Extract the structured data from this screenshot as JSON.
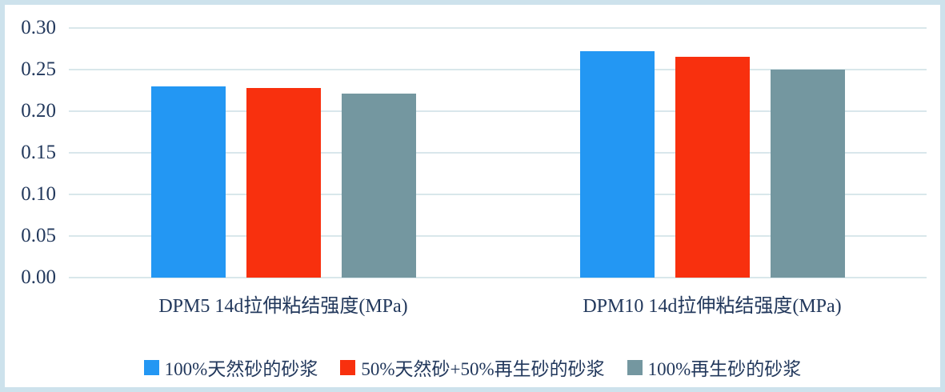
{
  "chart_data": {
    "type": "bar",
    "title": "",
    "xlabel": "",
    "ylabel": "",
    "categories": [
      "DPM5 14d拉伸粘结强度(MPa)",
      "DPM10 14d拉伸粘结强度(MPa)"
    ],
    "series": [
      {
        "name": "100%天然砂的砂浆",
        "color": "#2397f3",
        "values": [
          0.23,
          0.272
        ]
      },
      {
        "name": "50%天然砂+50%再生砂的砂浆",
        "color": "#f8300e",
        "values": [
          0.228,
          0.265
        ]
      },
      {
        "name": "100%再生砂的砂浆",
        "color": "#7497a0",
        "values": [
          0.221,
          0.25
        ]
      }
    ],
    "ylim": [
      0,
      0.3
    ],
    "ytick_step": 0.05,
    "ytick_labels": [
      "0.00",
      "0.05",
      "0.10",
      "0.15",
      "0.20",
      "0.25",
      "0.30"
    ],
    "grid": true,
    "legend_position": "bottom"
  }
}
